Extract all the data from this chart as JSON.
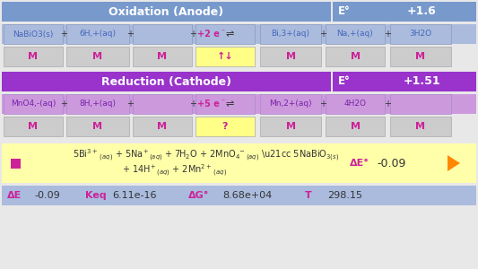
{
  "bg_color": "#f0f0f0",
  "oxidation_header_color": "#7799cc",
  "oxidation_header_text": "Oxidation (Anode)",
  "oxidation_row_bg": "#aabbdd",
  "e_oxidation_label": "E°",
  "e_oxidation_value": "+1.6",
  "m_row_bg": "#cccccc",
  "m_row_highlight_bg": "#ffff88",
  "m_row_highlight_text": "↑↓",
  "reduction_header_color": "#9933cc",
  "reduction_header_text": "Reduction (Cathode)",
  "reduction_row_bg": "#cc99dd",
  "e_reduction_label": "E°",
  "e_reduction_value": "+1.51",
  "m_row2_highlight_text": "?",
  "overall_bg": "#ffffaa",
  "delta_e_label": "ΔE°",
  "delta_e_value": "-0.09",
  "bottom_bg": "#aabbdd",
  "bottom_delta_e_label": "ΔE",
  "bottom_delta_e_value": "-0.09",
  "bottom_keq_label": "Keq",
  "bottom_keq_value": "6.11e-16",
  "bottom_delta_g_label": "ΔG°",
  "bottom_delta_g_value": "8.68e+04",
  "bottom_t_label": "T",
  "bottom_t_value": "298.15",
  "pink_color": "#cc2299",
  "blue_text_color": "#4466bb",
  "purple_text_color": "#7722aa",
  "text_color_dark": "#333333",
  "white": "#ffffff",
  "orange_arrow": "#ff8800",
  "gap_color": "#e8e8e8"
}
